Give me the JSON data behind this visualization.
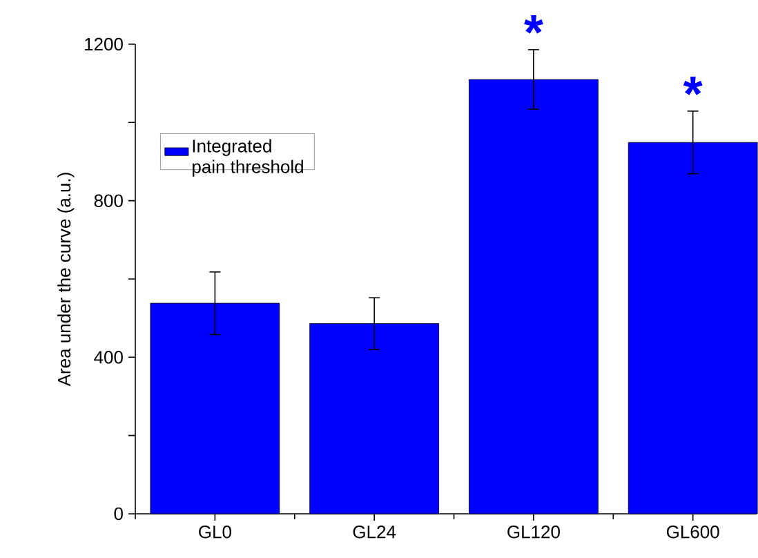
{
  "chart_data": {
    "type": "bar",
    "ylabel": "Area under the curve (a.u.)",
    "categories": [
      "GL0",
      "GL24",
      "GL120",
      "GL600"
    ],
    "series": [
      {
        "name": "Integrated pain threshold",
        "color": "#0000ff",
        "values": [
          538,
          486,
          1110,
          949
        ],
        "errors": [
          80,
          66,
          76,
          80
        ]
      }
    ],
    "ylim": [
      0,
      1200
    ],
    "yticks": [
      0,
      {
        "value": 200,
        "label": null
      },
      400,
      {
        "value": 600,
        "label": null
      },
      800,
      {
        "value": 1000,
        "label": null
      },
      1200
    ],
    "legend": "top left",
    "annotations": [
      {
        "text": "*",
        "x": "GL120",
        "y": 1186
      },
      {
        "text": "*",
        "x": "GL600",
        "y": 1029
      }
    ]
  }
}
